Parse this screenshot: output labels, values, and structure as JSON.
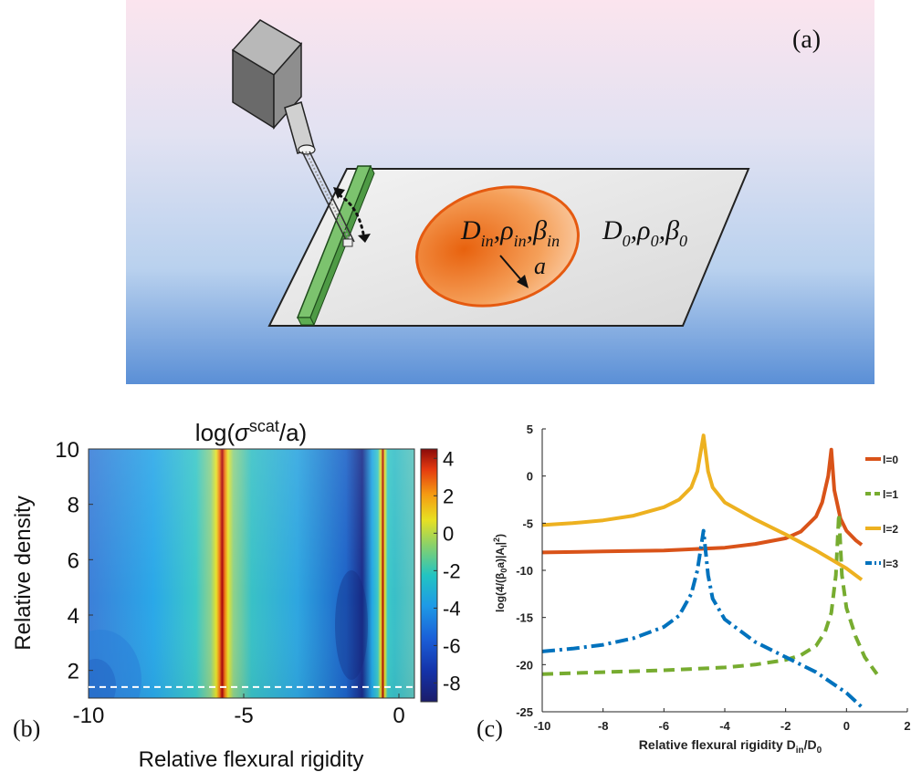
{
  "panel_a": {
    "label": "(a)",
    "inclusion_params": "D_in, ρ_in, β_in",
    "radius_symbol": "a",
    "plate_params": "D_0, ρ_0, β_0"
  },
  "panel_b": {
    "label": "(b)"
  },
  "panel_c": {
    "label": "(c)"
  },
  "chart_data": [
    {
      "type": "heatmap",
      "title": "log(σ^scat/a)",
      "xlabel": "Relative flexural rigidity",
      "ylabel": "Relative density",
      "xlim": [
        -10,
        0.5
      ],
      "ylim": [
        1,
        10
      ],
      "x_ticks": [
        "-10",
        "-5",
        "0"
      ],
      "y_ticks": [
        "2",
        "4",
        "6",
        "8",
        "10"
      ],
      "colorbar": {
        "range": [
          -9,
          4.5
        ],
        "ticks": [
          "4",
          "2",
          "0",
          "-2",
          "-4",
          "-6",
          "-8"
        ]
      },
      "resonances_x": [
        -4.7,
        -0.5
      ],
      "low_band_x": -0.95,
      "dashed_line_y": 1.4
    },
    {
      "type": "line",
      "xlabel": "Relative flexural rigidity D_in/D_0",
      "ylabel": "log(4/(β_0a)|A_l|^2)",
      "xlim": [
        -10,
        2
      ],
      "ylim": [
        -25,
        5
      ],
      "x_ticks": [
        "-10",
        "-8",
        "-6",
        "-4",
        "-2",
        "0",
        "2"
      ],
      "y_ticks": [
        "5",
        "0",
        "-5",
        "-10",
        "-15",
        "-20",
        "-25"
      ],
      "series": [
        {
          "name": "l=0",
          "color": "#d95319",
          "style": "solid",
          "points": [
            [
              -10,
              -8.1
            ],
            [
              -8,
              -8.0
            ],
            [
              -6,
              -7.9
            ],
            [
              -4,
              -7.6
            ],
            [
              -3,
              -7.2
            ],
            [
              -2,
              -6.6
            ],
            [
              -1.5,
              -5.9
            ],
            [
              -1,
              -4.3
            ],
            [
              -0.8,
              -2.8
            ],
            [
              -0.6,
              0.0
            ],
            [
              -0.5,
              2.8
            ],
            [
              -0.4,
              -1.5
            ],
            [
              -0.2,
              -4.5
            ],
            [
              0,
              -5.8
            ],
            [
              0.3,
              -6.8
            ],
            [
              0.5,
              -7.3
            ]
          ]
        },
        {
          "name": "l=1",
          "color": "#77ac30",
          "style": "dashed",
          "points": [
            [
              -10,
              -21.0
            ],
            [
              -8,
              -20.8
            ],
            [
              -6,
              -20.6
            ],
            [
              -4,
              -20.3
            ],
            [
              -3,
              -20.0
            ],
            [
              -2,
              -19.5
            ],
            [
              -1.5,
              -19.0
            ],
            [
              -1,
              -18.0
            ],
            [
              -0.7,
              -16.5
            ],
            [
              -0.5,
              -14.5
            ],
            [
              -0.35,
              -10.5
            ],
            [
              -0.25,
              -4.0
            ],
            [
              -0.15,
              -10.5
            ],
            [
              0,
              -14.0
            ],
            [
              0.3,
              -17.0
            ],
            [
              0.6,
              -19.2
            ],
            [
              1,
              -21.0
            ]
          ]
        },
        {
          "name": "l=2",
          "color": "#edb120",
          "style": "solid",
          "points": [
            [
              -10,
              -5.2
            ],
            [
              -9,
              -5.0
            ],
            [
              -8,
              -4.7
            ],
            [
              -7,
              -4.2
            ],
            [
              -6,
              -3.3
            ],
            [
              -5.5,
              -2.5
            ],
            [
              -5.1,
              -1.2
            ],
            [
              -4.9,
              0.5
            ],
            [
              -4.7,
              4.3
            ],
            [
              -4.55,
              0.5
            ],
            [
              -4.4,
              -1.2
            ],
            [
              -4,
              -2.8
            ],
            [
              -3,
              -4.6
            ],
            [
              -2,
              -6.2
            ],
            [
              -1,
              -7.9
            ],
            [
              0,
              -9.8
            ],
            [
              0.5,
              -11.0
            ]
          ]
        },
        {
          "name": "l=3",
          "color": "#0072bd",
          "style": "dashdot",
          "points": [
            [
              -10,
              -18.6
            ],
            [
              -9,
              -18.3
            ],
            [
              -8,
              -17.9
            ],
            [
              -7,
              -17.2
            ],
            [
              -6,
              -16.0
            ],
            [
              -5.5,
              -14.8
            ],
            [
              -5.1,
              -12.5
            ],
            [
              -4.9,
              -10.0
            ],
            [
              -4.7,
              -5.8
            ],
            [
              -4.55,
              -10.5
            ],
            [
              -4.4,
              -13.0
            ],
            [
              -4,
              -15.2
            ],
            [
              -3,
              -17.6
            ],
            [
              -2,
              -19.2
            ],
            [
              -1,
              -20.8
            ],
            [
              0,
              -23.0
            ],
            [
              0.5,
              -24.5
            ]
          ]
        }
      ]
    }
  ]
}
